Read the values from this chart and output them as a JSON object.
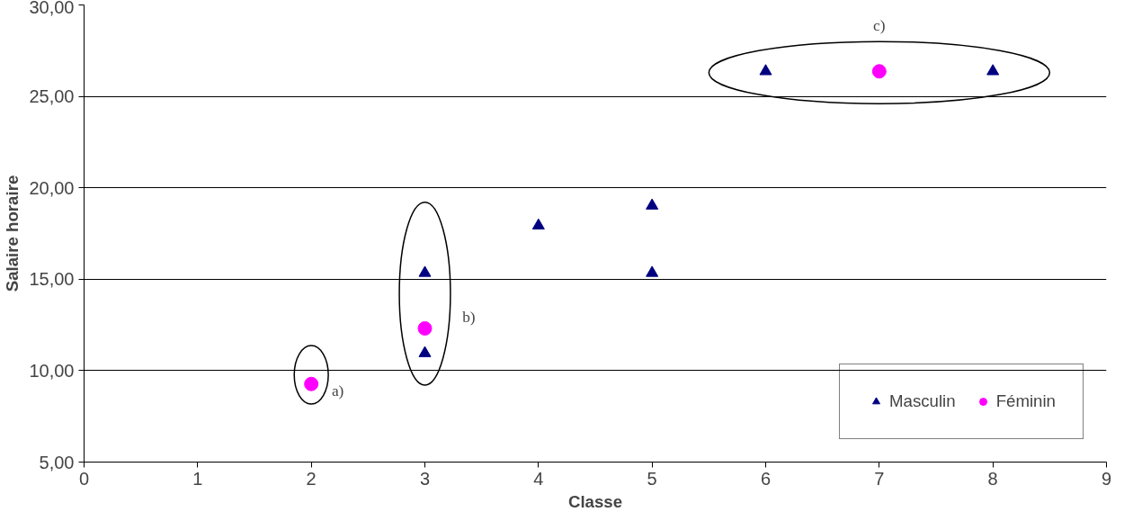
{
  "chart_data": {
    "type": "scatter",
    "xlabel": "Classe",
    "ylabel": "Salaire horaire",
    "xlim": [
      0,
      9
    ],
    "xticks": [
      0,
      1,
      2,
      3,
      4,
      5,
      6,
      7,
      8,
      9
    ],
    "ylim": [
      5,
      30
    ],
    "yticks": [
      {
        "value": 5,
        "label": "5,00"
      },
      {
        "value": 10,
        "label": "10,00"
      },
      {
        "value": 15,
        "label": "15,00"
      },
      {
        "value": 20,
        "label": "20,00"
      },
      {
        "value": 25,
        "label": "25,00"
      },
      {
        "value": 30,
        "label": "30,00"
      }
    ],
    "grid": "y",
    "legend": "bottom right",
    "series": [
      {
        "name": "Masculin",
        "color": "#000080",
        "marker": "triangle",
        "x": [
          3,
          3,
          4,
          5,
          5,
          6,
          8
        ],
        "values": [
          15.34,
          10.95,
          17.93,
          19.02,
          15.34,
          26.37,
          26.37
        ]
      },
      {
        "name": "Féminin",
        "color": "#ff00ff",
        "marker": "circle",
        "x": [
          2,
          3,
          7
        ],
        "values": [
          9.27,
          12.31,
          26.37
        ]
      }
    ],
    "annotations": [
      {
        "text": "a)",
        "x": 2,
        "y": 9.27
      },
      {
        "text": "b)",
        "x": 3,
        "y": 12.31
      },
      {
        "text": "c)",
        "x": 7,
        "y": 26.37
      }
    ]
  }
}
